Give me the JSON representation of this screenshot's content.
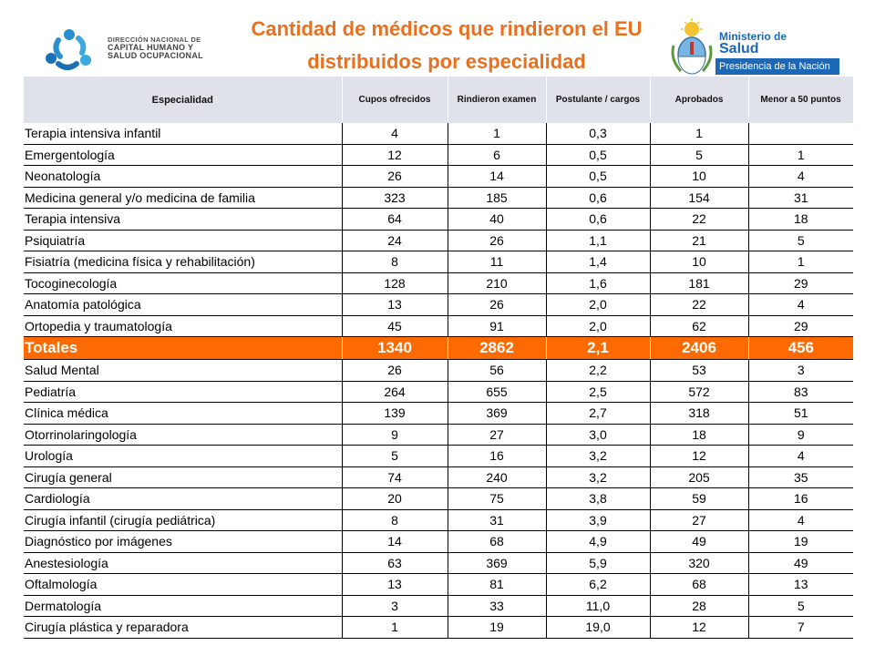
{
  "header": {
    "title_line1": "Cantidad de médicos que rindieron el EU",
    "title_line2": "distribuidos por especialidad",
    "title_color": "#e9701f",
    "left_logo": {
      "icon": "people-circle-logo-icon",
      "line1": "DIRECCIÓN NACIONAL DE",
      "line2": "CAPITAL HUMANO Y",
      "line3": "SALUD OCUPACIONAL"
    },
    "right_logo": {
      "icon": "argentina-coat-of-arms-icon",
      "line1": "Ministerio de",
      "line2": "Salud",
      "line3": "Presidencia de la Nación",
      "brand_color": "#1c67b6"
    }
  },
  "table": {
    "columns": [
      "Especialidad",
      "Cupos ofrecidos",
      "Rindieron examen",
      "Postulante / cargos",
      "Aprobados",
      "Menor a 50 puntos"
    ],
    "rows_top": [
      [
        "Terapia intensiva infantil",
        "4",
        "1",
        "0,3",
        "1",
        ""
      ],
      [
        "Emergentología",
        "12",
        "6",
        "0,5",
        "5",
        "1"
      ],
      [
        "Neonatología",
        "26",
        "14",
        "0,5",
        "10",
        "4"
      ],
      [
        "Medicina general y/o medicina de familia",
        "323",
        "185",
        "0,6",
        "154",
        "31"
      ],
      [
        "Terapia intensiva",
        "64",
        "40",
        "0,6",
        "22",
        "18"
      ],
      [
        "Psiquiatría",
        "24",
        "26",
        "1,1",
        "21",
        "5"
      ],
      [
        "Fisiatría (medicina física y rehabilitación)",
        "8",
        "11",
        "1,4",
        "10",
        "1"
      ],
      [
        "Tocoginecología",
        "128",
        "210",
        "1,6",
        "181",
        "29"
      ],
      [
        "Anatomía patológica",
        "13",
        "26",
        "2,0",
        "22",
        "4"
      ],
      [
        "Ortopedia y traumatología",
        "45",
        "91",
        "2,0",
        "62",
        "29"
      ]
    ],
    "totals": [
      "Totales",
      "1340",
      "2862",
      "2,1",
      "2406",
      "456"
    ],
    "totals_color": "#ff6a00",
    "rows_bottom": [
      [
        "Salud Mental",
        "26",
        "56",
        "2,2",
        "53",
        "3"
      ],
      [
        "Pediatría",
        "264",
        "655",
        "2,5",
        "572",
        "83"
      ],
      [
        "Clínica médica",
        "139",
        "369",
        "2,7",
        "318",
        "51"
      ],
      [
        "Otorrinolaringología",
        "9",
        "27",
        "3,0",
        "18",
        "9"
      ],
      [
        "Urología",
        "5",
        "16",
        "3,2",
        "12",
        "4"
      ],
      [
        "Cirugía general",
        "74",
        "240",
        "3,2",
        "205",
        "35"
      ],
      [
        "Cardiología",
        "20",
        "75",
        "3,8",
        "59",
        "16"
      ],
      [
        "Cirugía infantil (cirugía pediátrica)",
        "8",
        "31",
        "3,9",
        "27",
        "4"
      ],
      [
        "Diagnóstico por imágenes",
        "14",
        "68",
        "4,9",
        "49",
        "19"
      ],
      [
        "Anestesiología",
        "63",
        "369",
        "5,9",
        "320",
        "49"
      ],
      [
        "Oftalmología",
        "13",
        "81",
        "6,2",
        "68",
        "13"
      ],
      [
        "Dermatología",
        "3",
        "33",
        "11,0",
        "28",
        "5"
      ],
      [
        "Cirugía plástica y reparadora",
        "1",
        "19",
        "19,0",
        "12",
        "7"
      ]
    ]
  }
}
